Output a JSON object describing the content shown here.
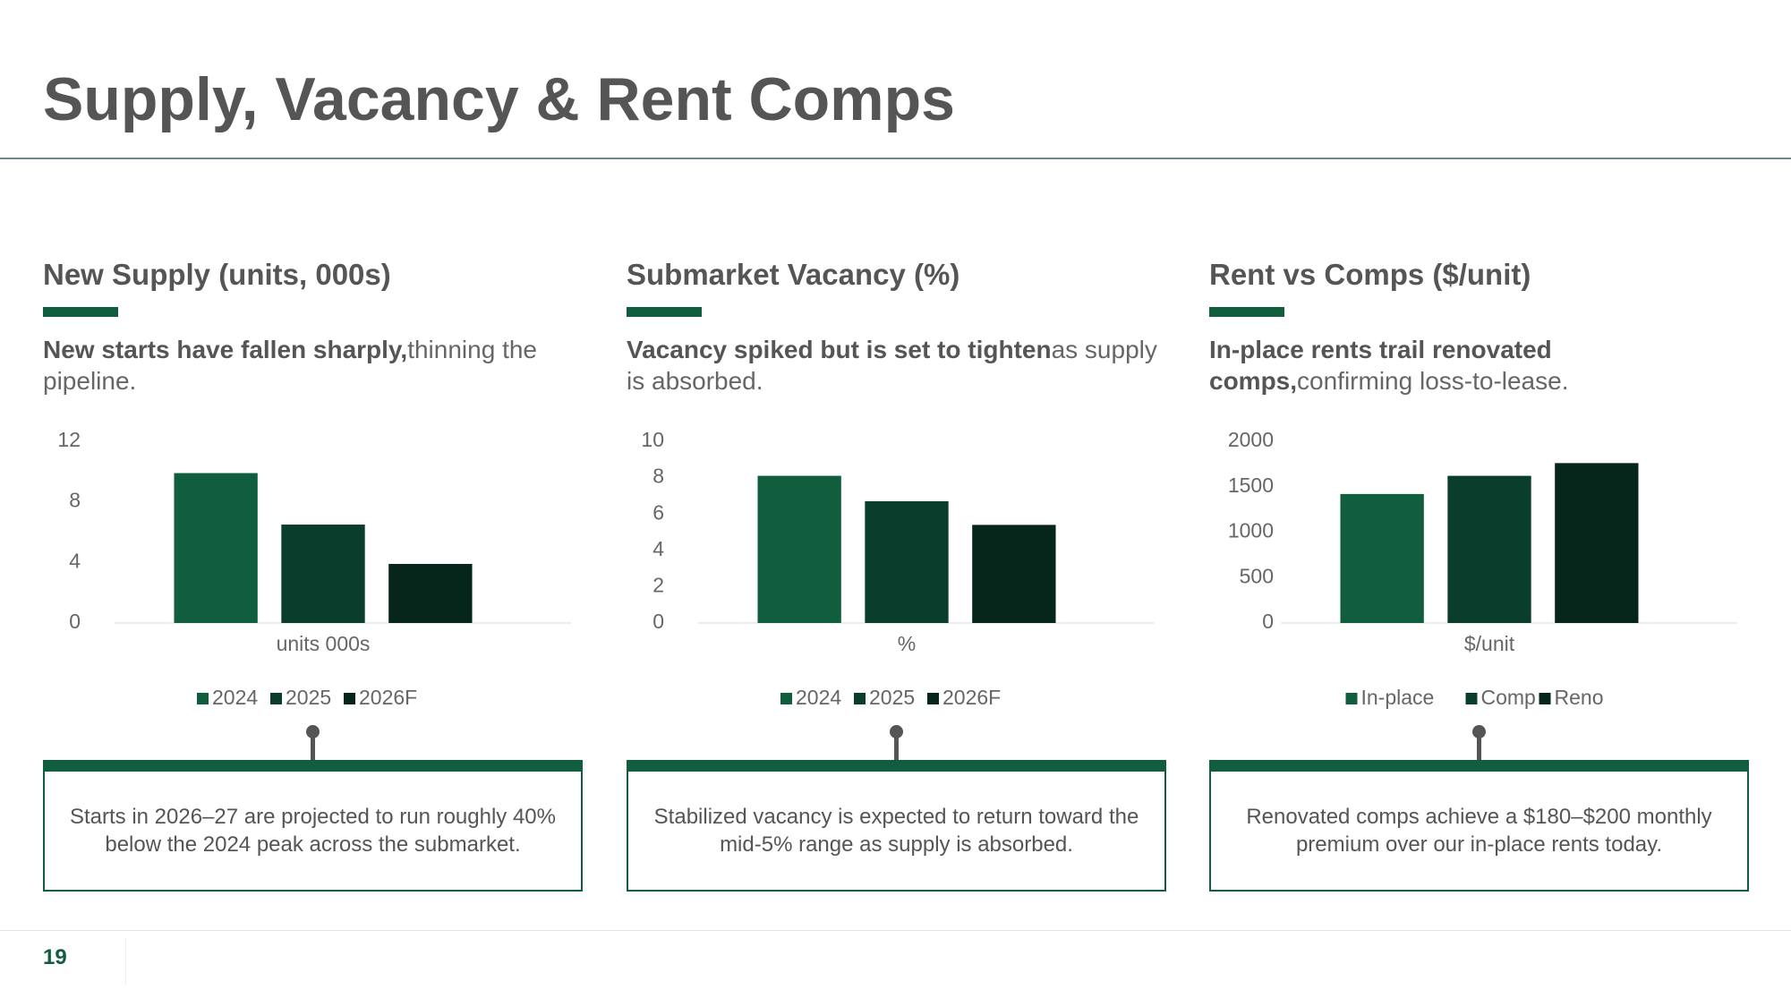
{
  "title": "Supply, Vacancy & Rent Comps",
  "page_number": "19",
  "chart_data": [
    {
      "type": "bar",
      "title": "New Supply (units, 000s)",
      "subtitle_bold": "New starts have fallen sharply,",
      "subtitle": "thinning the pipeline.",
      "categories": [
        "units 000s"
      ],
      "series": [
        {
          "name": "2024",
          "color": "#115e3f",
          "values": [
            9.9
          ]
        },
        {
          "name": "2025",
          "color": "#0a3d2b",
          "values": [
            6.5
          ]
        },
        {
          "name": "2026F",
          "color": "#06261b",
          "values": [
            3.9
          ]
        }
      ],
      "ylim": [
        0,
        12
      ],
      "yticks": [
        0,
        4,
        8,
        12
      ],
      "grid": false,
      "legend": "bottom",
      "annotation": "Starts in 2026–27 are projected to run roughly 40% below the 2024 peak across the submarket."
    },
    {
      "type": "bar",
      "title": "Submarket Vacancy (%)",
      "subtitle_bold": "Vacancy spiked but is set to tighten",
      "subtitle": "as supply is absorbed.",
      "categories": [
        "%"
      ],
      "series": [
        {
          "name": "2024",
          "color": "#115e3f",
          "values": [
            8.1
          ]
        },
        {
          "name": "2025",
          "color": "#0a3d2b",
          "values": [
            6.7
          ]
        },
        {
          "name": "2026F",
          "color": "#06261b",
          "values": [
            5.4
          ]
        }
      ],
      "ylim": [
        0,
        10
      ],
      "yticks": [
        0,
        2,
        4,
        6,
        8,
        10
      ],
      "grid": false,
      "legend": "bottom",
      "annotation": "Stabilized vacancy is expected to return toward the mid-5% range as supply is absorbed."
    },
    {
      "type": "bar",
      "title": "Rent vs Comps ($/unit)",
      "subtitle_bold": "In-place rents trail renovated comps,",
      "subtitle": "confirming loss-to-lease.",
      "categories": [
        "$/unit"
      ],
      "series": [
        {
          "name": "In-place",
          "color": "#115e3f",
          "values": [
            1420
          ]
        },
        {
          "name": "Comp",
          "color": "#0a3d2b",
          "values": [
            1620
          ]
        },
        {
          "name": "Reno",
          "color": "#06261b",
          "values": [
            1760
          ]
        }
      ],
      "ylim": [
        0,
        2000
      ],
      "yticks": [
        0,
        500,
        1000,
        1500,
        2000
      ],
      "grid": false,
      "legend": "bottom",
      "annotation": "Renovated comps achieve a $180–$200 monthly premium over our in-place rents today."
    }
  ]
}
